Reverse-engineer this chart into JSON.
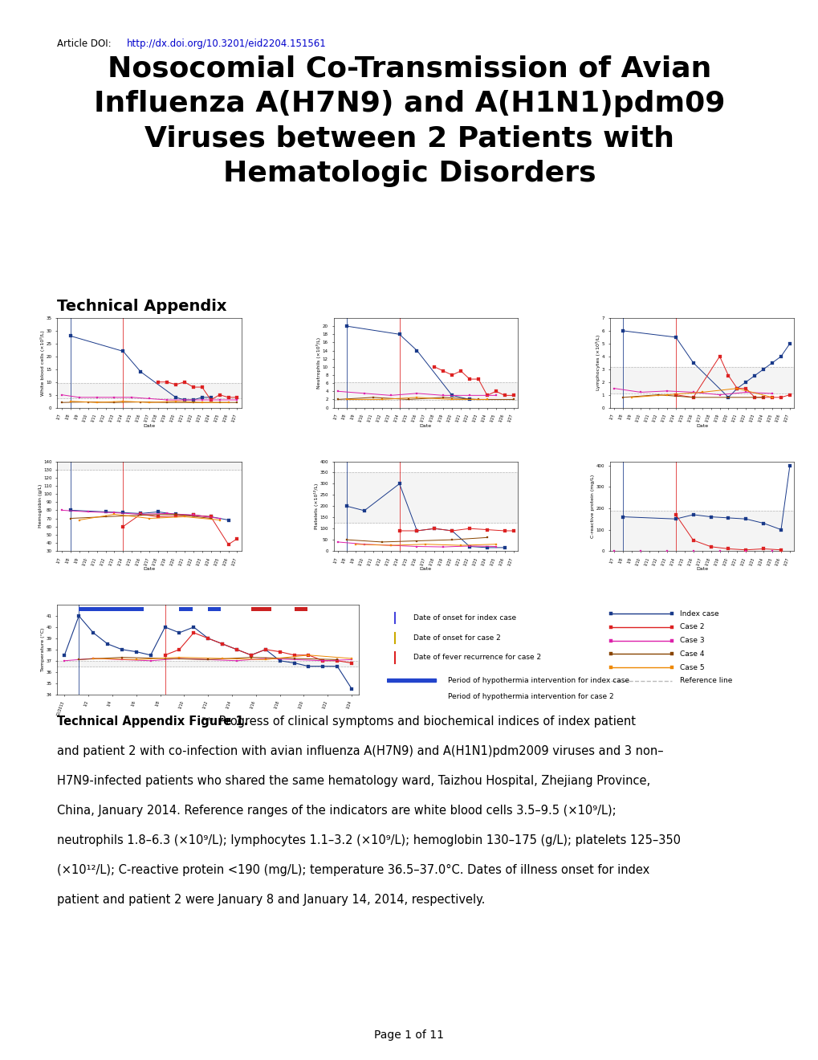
{
  "doi_prefix": "Article DOI: ",
  "doi_link": "http://dx.doi.org/10.3201/eid2204.151561",
  "title": "Nosocomial Co-Transmission of Avian\nInfluenza A(H7N9) and A(H1N1)pdm09\nViruses between 2 Patients with\nHematologic Disorders",
  "section_header": "Technical Appendix",
  "caption_bold": "Technical Appendix Figure 1.",
  "caption_rest": " Progress of clinical symptoms and biochemical indices of index patient and patient 2 with co-infection with avian influenza A(H7N9) and A(H1N1)pdm2009 viruses and 3 non–H7N9-infected patients who shared the same hematology ward, Taizhou Hospital, Zhejiang Province, China, January 2014. Reference ranges of the indicators are white blood cells 3.5–9.5 (×10⁹/L); neutrophils 1.8–6.3 (×10⁹/L); lymphocytes 1.1–3.2 (×10⁹/L); hemoglobin 130–175 (g/L); platelets 125–350 (×10¹²/L); C-reactive protein <190 (mg/L); temperature 36.5–37.0°C. Dates of illness onset for index patient and patient 2 were January 8 and January 14, 2014, respectively.",
  "page_footer": "Page 1 of 11",
  "bg": "#ffffff",
  "col_index": "#1a3a8a",
  "col_case2": "#dd2222",
  "col_case3": "#dd22aa",
  "col_case4": "#884400",
  "col_case5": "#ee8800",
  "col_ref": "#bbbbbb",
  "col_ref_band": "#eeeeee"
}
